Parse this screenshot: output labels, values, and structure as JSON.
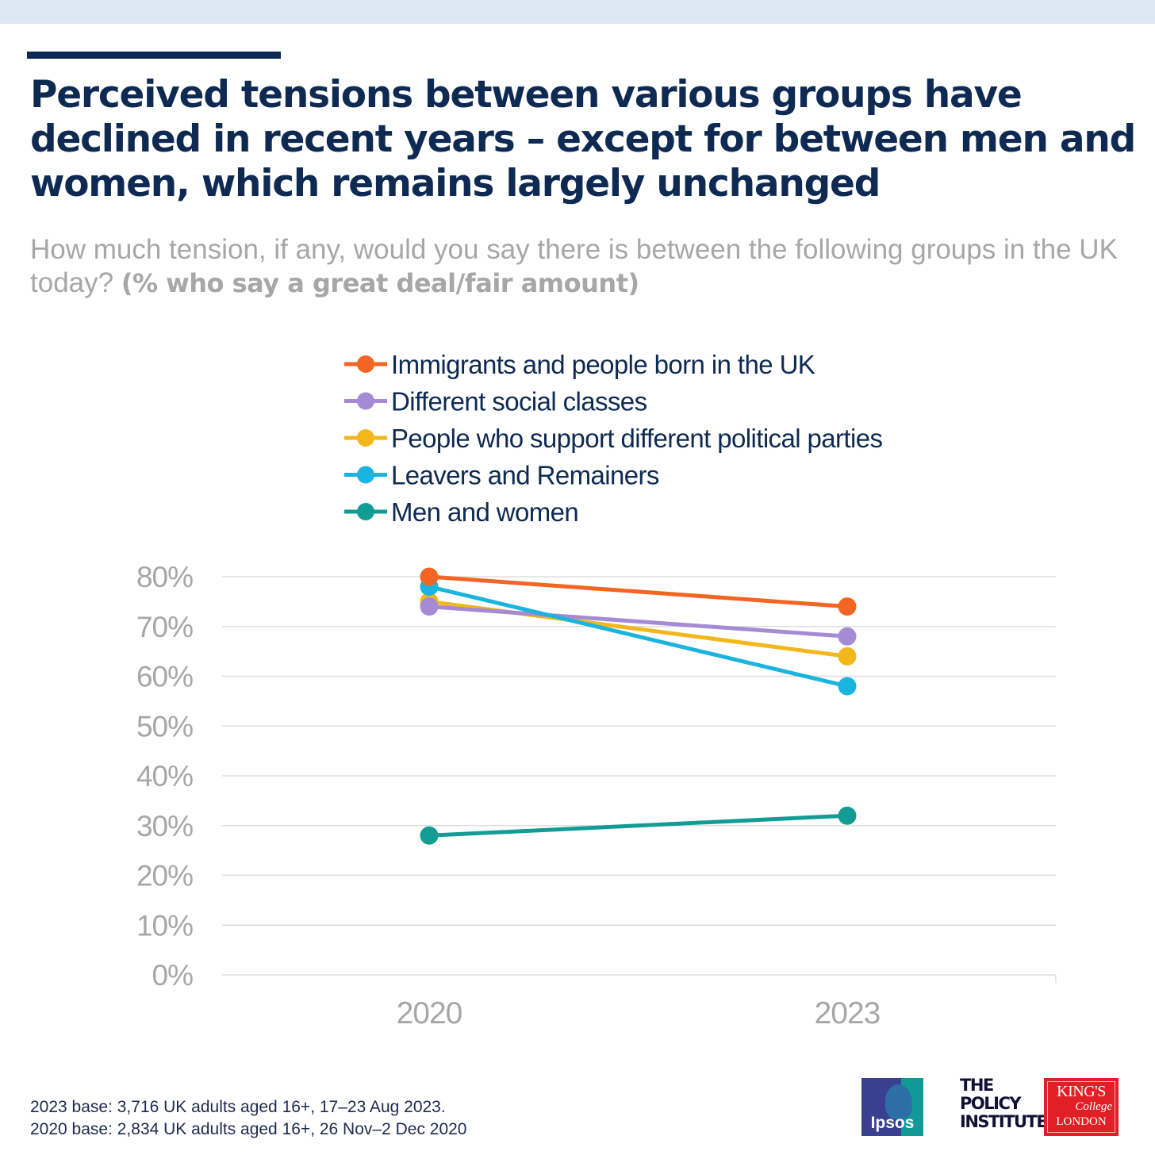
{
  "colors": {
    "top_band": "#dce9f5",
    "accent": "#0e2a52",
    "title": "#0e2a52",
    "subtitle": "#a7a7a7",
    "axis_text": "#a7a7a7",
    "gridline": "#dedede",
    "legend_text": "#0e2a52"
  },
  "title": "Perceived tensions between various groups have declined in recent years – except for between men and women, which remains largely unchanged",
  "subtitle": {
    "question": "How much tension, if any, would you say there is between the following groups in the UK today?",
    "qualifier": "(% who say a great deal/fair amount)"
  },
  "chart_data": {
    "type": "line",
    "x": [
      "2020",
      "2023"
    ],
    "ylim": [
      0,
      80
    ],
    "yticks": [
      "0%",
      "10%",
      "20%",
      "30%",
      "40%",
      "50%",
      "60%",
      "70%",
      "80%"
    ],
    "grid": true,
    "legend_position": "top",
    "series": [
      {
        "name": "Immigrants and people born in the UK",
        "color": "#f26522",
        "values": [
          80,
          74
        ]
      },
      {
        "name": "Different social classes",
        "color": "#a48bd4",
        "values": [
          74,
          68
        ]
      },
      {
        "name": "People who support different political parties",
        "color": "#f2b71d",
        "values": [
          75,
          64
        ]
      },
      {
        "name": "Leavers and Remainers",
        "color": "#1ab4de",
        "values": [
          78,
          58
        ]
      },
      {
        "name": "Men and women",
        "color": "#139c93",
        "values": [
          28,
          32
        ]
      }
    ]
  },
  "footer": {
    "line1": "2023 base: 3,716 UK adults aged 16+, 17–23 Aug 2023.",
    "line2": "2020 base: 2,834 UK adults aged 16+, 26 Nov–2 Dec 2020"
  },
  "logos": {
    "ipsos": {
      "text": "Ipsos",
      "colors": [
        "#3a3f8f",
        "#0f9a96"
      ]
    },
    "policy_institute": {
      "lines": [
        "THE",
        "POLICY",
        "INSTITUTE"
      ]
    },
    "kings": {
      "lines": [
        "KING'S",
        "College",
        "LONDON"
      ],
      "color": "#e01f26"
    }
  }
}
